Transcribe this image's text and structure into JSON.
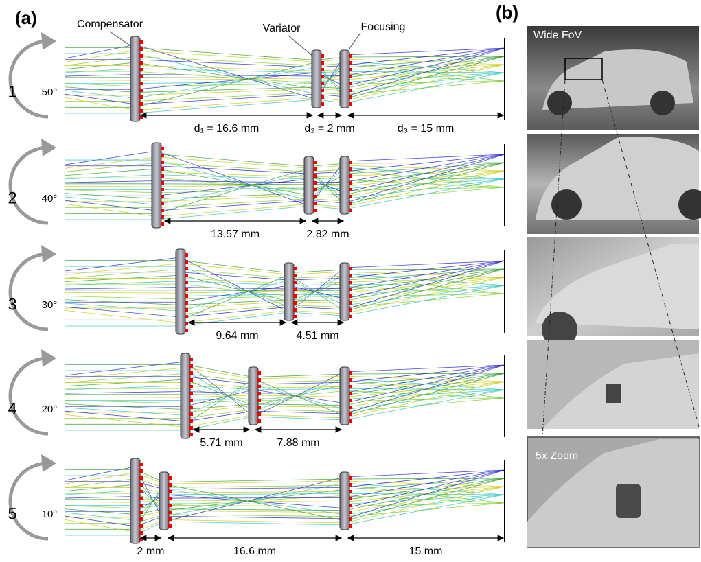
{
  "panel_a": {
    "label": "(a)",
    "element_labels": {
      "compensator": "Compensator",
      "variator": "Variator",
      "focusing": "Focusing"
    },
    "rows": [
      {
        "number": "1",
        "angle": "50°",
        "distances": [
          "d₁ = 16.6 mm",
          "d₂ = 2 mm",
          "d₃ = 15 mm"
        ]
      },
      {
        "number": "2",
        "angle": "40°",
        "distances": [
          "13.57 mm",
          "2.82 mm"
        ]
      },
      {
        "number": "3",
        "angle": "30°",
        "distances": [
          "9.64 mm",
          "4.51 mm"
        ]
      },
      {
        "number": "4",
        "angle": "20°",
        "distances": [
          "5.71 mm",
          "7.88 mm"
        ]
      },
      {
        "number": "5",
        "angle": "10°",
        "distances": [
          "2 mm",
          "16.6 mm",
          "15 mm"
        ]
      }
    ]
  },
  "panel_b": {
    "label": "(b)",
    "wide_caption": "Wide FoV",
    "zoom_caption": "5x Zoom"
  }
}
